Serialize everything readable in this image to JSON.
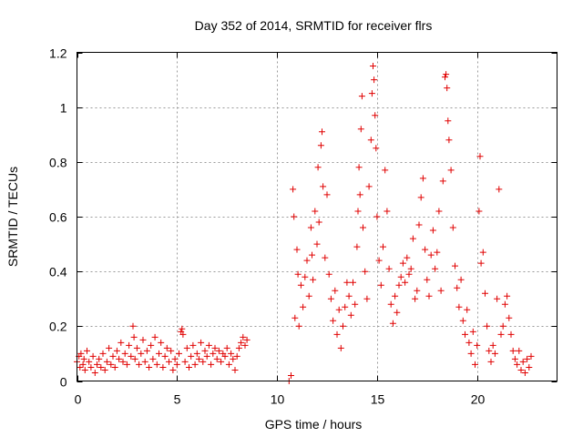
{
  "chart_data": {
    "type": "scatter",
    "title": "Day 352 of 2014, SRMTID for receiver flrs",
    "xlabel": "GPS time / hours",
    "ylabel": "SRMTID / TECUs",
    "xlim": [
      0,
      24
    ],
    "ylim": [
      0,
      1.2
    ],
    "xticks": [
      0,
      5,
      10,
      15,
      20
    ],
    "yticks": [
      0,
      0.2,
      0.4,
      0.6,
      0.8,
      1,
      1.2
    ],
    "xtick_labels": [
      "0",
      "5",
      "10",
      "15",
      "20"
    ],
    "ytick_labels": [
      "0",
      "0.2",
      "0.4",
      "0.6",
      "0.8",
      "1",
      "1.2"
    ],
    "grid": true,
    "marker": "+",
    "marker_color": "#e00000",
    "series": [
      {
        "name": "SRMTID",
        "points": [
          [
            0.0,
            0.07
          ],
          [
            0.1,
            0.09
          ],
          [
            0.15,
            0.05
          ],
          [
            0.2,
            0.1
          ],
          [
            0.3,
            0.06
          ],
          [
            0.35,
            0.08
          ],
          [
            0.4,
            0.04
          ],
          [
            0.5,
            0.11
          ],
          [
            0.6,
            0.07
          ],
          [
            0.7,
            0.05
          ],
          [
            0.8,
            0.09
          ],
          [
            0.9,
            0.03
          ],
          [
            1.0,
            0.06
          ],
          [
            1.1,
            0.08
          ],
          [
            1.2,
            0.05
          ],
          [
            1.3,
            0.1
          ],
          [
            1.4,
            0.04
          ],
          [
            1.5,
            0.07
          ],
          [
            1.6,
            0.12
          ],
          [
            1.7,
            0.06
          ],
          [
            1.8,
            0.09
          ],
          [
            1.9,
            0.05
          ],
          [
            2.0,
            0.11
          ],
          [
            2.1,
            0.08
          ],
          [
            2.2,
            0.14
          ],
          [
            2.3,
            0.07
          ],
          [
            2.4,
            0.1
          ],
          [
            2.5,
            0.06
          ],
          [
            2.6,
            0.13
          ],
          [
            2.7,
            0.09
          ],
          [
            2.8,
            0.2
          ],
          [
            2.85,
            0.16
          ],
          [
            2.9,
            0.08
          ],
          [
            3.0,
            0.12
          ],
          [
            3.1,
            0.06
          ],
          [
            3.2,
            0.1
          ],
          [
            3.3,
            0.15
          ],
          [
            3.4,
            0.07
          ],
          [
            3.5,
            0.11
          ],
          [
            3.6,
            0.05
          ],
          [
            3.7,
            0.13
          ],
          [
            3.8,
            0.08
          ],
          [
            3.9,
            0.16
          ],
          [
            4.0,
            0.06
          ],
          [
            4.1,
            0.1
          ],
          [
            4.2,
            0.14
          ],
          [
            4.3,
            0.05
          ],
          [
            4.4,
            0.09
          ],
          [
            4.5,
            0.12
          ],
          [
            4.6,
            0.07
          ],
          [
            4.7,
            0.11
          ],
          [
            4.8,
            0.04
          ],
          [
            4.9,
            0.08
          ],
          [
            5.0,
            0.06
          ],
          [
            5.1,
            0.1
          ],
          [
            5.2,
            0.18
          ],
          [
            5.25,
            0.19
          ],
          [
            5.3,
            0.17
          ],
          [
            5.4,
            0.07
          ],
          [
            5.5,
            0.12
          ],
          [
            5.6,
            0.05
          ],
          [
            5.7,
            0.09
          ],
          [
            5.8,
            0.13
          ],
          [
            5.9,
            0.06
          ],
          [
            6.0,
            0.1
          ],
          [
            6.1,
            0.08
          ],
          [
            6.2,
            0.14
          ],
          [
            6.3,
            0.07
          ],
          [
            6.4,
            0.11
          ],
          [
            6.5,
            0.09
          ],
          [
            6.6,
            0.13
          ],
          [
            6.7,
            0.06
          ],
          [
            6.8,
            0.1
          ],
          [
            6.9,
            0.12
          ],
          [
            7.0,
            0.08
          ],
          [
            7.1,
            0.11
          ],
          [
            7.2,
            0.07
          ],
          [
            7.3,
            0.1
          ],
          [
            7.4,
            0.09
          ],
          [
            7.5,
            0.12
          ],
          [
            7.6,
            0.06
          ],
          [
            7.7,
            0.1
          ],
          [
            7.8,
            0.08
          ],
          [
            7.9,
            0.04
          ],
          [
            8.0,
            0.09
          ],
          [
            8.1,
            0.12
          ],
          [
            8.2,
            0.14
          ],
          [
            8.3,
            0.16
          ],
          [
            8.4,
            0.13
          ],
          [
            8.5,
            0.15
          ],
          [
            10.6,
            0.0
          ],
          [
            10.7,
            0.02
          ],
          [
            10.8,
            0.7
          ],
          [
            10.85,
            0.6
          ],
          [
            10.9,
            0.23
          ],
          [
            11.0,
            0.48
          ],
          [
            11.05,
            0.39
          ],
          [
            11.1,
            0.2
          ],
          [
            11.2,
            0.35
          ],
          [
            11.3,
            0.27
          ],
          [
            11.4,
            0.38
          ],
          [
            11.5,
            0.44
          ],
          [
            11.6,
            0.31
          ],
          [
            11.7,
            0.56
          ],
          [
            11.75,
            0.46
          ],
          [
            11.8,
            0.37
          ],
          [
            11.9,
            0.62
          ],
          [
            12.0,
            0.5
          ],
          [
            12.05,
            0.78
          ],
          [
            12.1,
            0.58
          ],
          [
            12.2,
            0.86
          ],
          [
            12.25,
            0.91
          ],
          [
            12.3,
            0.71
          ],
          [
            12.4,
            0.45
          ],
          [
            12.5,
            0.68
          ],
          [
            12.6,
            0.39
          ],
          [
            12.7,
            0.3
          ],
          [
            12.8,
            0.22
          ],
          [
            12.9,
            0.33
          ],
          [
            13.0,
            0.17
          ],
          [
            13.1,
            0.26
          ],
          [
            13.2,
            0.12
          ],
          [
            13.3,
            0.2
          ],
          [
            13.4,
            0.27
          ],
          [
            13.5,
            0.36
          ],
          [
            13.6,
            0.31
          ],
          [
            13.7,
            0.24
          ],
          [
            13.8,
            0.36
          ],
          [
            13.9,
            0.28
          ],
          [
            14.0,
            0.49
          ],
          [
            14.05,
            0.62
          ],
          [
            14.1,
            0.78
          ],
          [
            14.15,
            0.68
          ],
          [
            14.2,
            0.92
          ],
          [
            14.25,
            1.04
          ],
          [
            14.3,
            0.56
          ],
          [
            14.4,
            0.4
          ],
          [
            14.5,
            0.3
          ],
          [
            14.6,
            0.71
          ],
          [
            14.7,
            0.88
          ],
          [
            14.75,
            1.05
          ],
          [
            14.8,
            1.15
          ],
          [
            14.85,
            1.1
          ],
          [
            14.9,
            0.97
          ],
          [
            14.95,
            0.85
          ],
          [
            15.0,
            0.6
          ],
          [
            15.1,
            0.44
          ],
          [
            15.2,
            0.35
          ],
          [
            15.3,
            0.49
          ],
          [
            15.4,
            0.77
          ],
          [
            15.5,
            0.62
          ],
          [
            15.6,
            0.41
          ],
          [
            15.7,
            0.28
          ],
          [
            15.8,
            0.21
          ],
          [
            15.9,
            0.31
          ],
          [
            16.0,
            0.25
          ],
          [
            16.1,
            0.35
          ],
          [
            16.2,
            0.38
          ],
          [
            16.3,
            0.43
          ],
          [
            16.4,
            0.36
          ],
          [
            16.5,
            0.45
          ],
          [
            16.6,
            0.39
          ],
          [
            16.7,
            0.41
          ],
          [
            16.8,
            0.52
          ],
          [
            16.9,
            0.3
          ],
          [
            17.0,
            0.33
          ],
          [
            17.1,
            0.57
          ],
          [
            17.2,
            0.67
          ],
          [
            17.3,
            0.74
          ],
          [
            17.4,
            0.48
          ],
          [
            17.5,
            0.37
          ],
          [
            17.6,
            0.31
          ],
          [
            17.7,
            0.46
          ],
          [
            17.8,
            0.55
          ],
          [
            17.9,
            0.41
          ],
          [
            18.0,
            0.47
          ],
          [
            18.1,
            0.62
          ],
          [
            18.2,
            0.33
          ],
          [
            18.3,
            0.73
          ],
          [
            18.4,
            1.11
          ],
          [
            18.45,
            1.12
          ],
          [
            18.5,
            1.07
          ],
          [
            18.55,
            0.95
          ],
          [
            18.6,
            0.88
          ],
          [
            18.7,
            0.77
          ],
          [
            18.8,
            0.56
          ],
          [
            18.9,
            0.42
          ],
          [
            19.0,
            0.34
          ],
          [
            19.1,
            0.27
          ],
          [
            19.2,
            0.37
          ],
          [
            19.3,
            0.22
          ],
          [
            19.4,
            0.17
          ],
          [
            19.5,
            0.26
          ],
          [
            19.6,
            0.14
          ],
          [
            19.7,
            0.1
          ],
          [
            19.8,
            0.18
          ],
          [
            19.9,
            0.06
          ],
          [
            20.0,
            0.13
          ],
          [
            20.1,
            0.62
          ],
          [
            20.15,
            0.82
          ],
          [
            20.2,
            0.43
          ],
          [
            20.3,
            0.47
          ],
          [
            20.4,
            0.32
          ],
          [
            20.5,
            0.2
          ],
          [
            20.6,
            0.11
          ],
          [
            20.7,
            0.07
          ],
          [
            20.8,
            0.13
          ],
          [
            20.9,
            0.1
          ],
          [
            21.0,
            0.3
          ],
          [
            21.1,
            0.7
          ],
          [
            21.2,
            0.17
          ],
          [
            21.3,
            0.2
          ],
          [
            21.4,
            0.28
          ],
          [
            21.5,
            0.31
          ],
          [
            21.6,
            0.23
          ],
          [
            21.7,
            0.17
          ],
          [
            21.8,
            0.11
          ],
          [
            21.9,
            0.08
          ],
          [
            22.0,
            0.06
          ],
          [
            22.1,
            0.11
          ],
          [
            22.2,
            0.04
          ],
          [
            22.3,
            0.07
          ],
          [
            22.4,
            0.03
          ],
          [
            22.5,
            0.08
          ],
          [
            22.6,
            0.05
          ],
          [
            22.7,
            0.09
          ]
        ]
      }
    ]
  }
}
